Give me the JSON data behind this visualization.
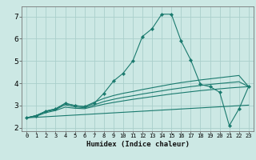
{
  "xlabel": "Humidex (Indice chaleur)",
  "bg_color": "#cce8e4",
  "grid_color": "#aacfcb",
  "line_color": "#1a7a6e",
  "xlim": [
    -0.5,
    23.5
  ],
  "ylim": [
    1.85,
    7.45
  ],
  "xticks": [
    0,
    1,
    2,
    3,
    4,
    5,
    6,
    7,
    8,
    9,
    10,
    11,
    12,
    13,
    14,
    15,
    16,
    17,
    18,
    19,
    20,
    21,
    22,
    23
  ],
  "yticks": [
    2,
    3,
    4,
    5,
    6,
    7
  ],
  "series": [
    {
      "x": [
        0,
        1,
        2,
        3,
        4,
        5,
        6,
        7,
        8,
        9,
        10,
        11,
        12,
        13,
        14,
        15,
        16,
        17,
        18,
        19,
        20,
        21,
        22,
        23
      ],
      "y": [
        2.45,
        2.55,
        2.75,
        2.85,
        3.1,
        3.0,
        2.95,
        3.1,
        3.55,
        4.1,
        4.45,
        5.0,
        6.1,
        6.45,
        7.1,
        7.1,
        5.9,
        5.05,
        3.95,
        3.85,
        3.6,
        2.1,
        2.85,
        3.85
      ],
      "marker": true
    },
    {
      "x": [
        0,
        1,
        2,
        3,
        4,
        5,
        6,
        7,
        8,
        9,
        10,
        11,
        12,
        13,
        14,
        15,
        16,
        17,
        18,
        19,
        20,
        21,
        22,
        23
      ],
      "y": [
        2.45,
        2.55,
        2.75,
        2.85,
        3.1,
        3.0,
        2.95,
        3.15,
        3.32,
        3.45,
        3.55,
        3.63,
        3.72,
        3.8,
        3.88,
        3.96,
        4.03,
        4.09,
        4.15,
        4.2,
        4.25,
        4.3,
        4.35,
        3.85
      ],
      "marker": false
    },
    {
      "x": [
        0,
        1,
        2,
        3,
        4,
        5,
        6,
        7,
        8,
        9,
        10,
        11,
        12,
        13,
        14,
        15,
        16,
        17,
        18,
        19,
        20,
        21,
        22,
        23
      ],
      "y": [
        2.45,
        2.55,
        2.73,
        2.82,
        3.04,
        2.94,
        2.9,
        3.03,
        3.18,
        3.28,
        3.37,
        3.44,
        3.52,
        3.59,
        3.66,
        3.73,
        3.79,
        3.85,
        3.9,
        3.95,
        3.99,
        4.03,
        4.07,
        3.85
      ],
      "marker": false
    },
    {
      "x": [
        0,
        1,
        2,
        3,
        4,
        5,
        6,
        7,
        8,
        9,
        10,
        11,
        12,
        13,
        14,
        15,
        16,
        17,
        18,
        19,
        20,
        21,
        22,
        23
      ],
      "y": [
        2.45,
        2.52,
        2.68,
        2.78,
        2.93,
        2.88,
        2.86,
        2.96,
        3.06,
        3.14,
        3.21,
        3.28,
        3.34,
        3.4,
        3.46,
        3.52,
        3.57,
        3.62,
        3.67,
        3.71,
        3.75,
        3.79,
        3.82,
        3.85
      ],
      "marker": false
    },
    {
      "x": [
        0,
        23
      ],
      "y": [
        2.45,
        3.02
      ],
      "marker": false
    }
  ]
}
